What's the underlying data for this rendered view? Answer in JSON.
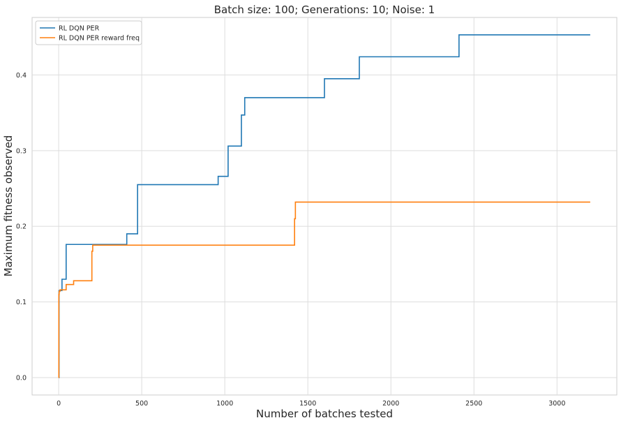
{
  "chart_data": {
    "type": "line",
    "title": "Batch size: 100; Generations: 10; Noise: 1",
    "xlabel": "Number of batches tested",
    "ylabel": "Maximum fitness observed",
    "xlim": [
      -160,
      3360
    ],
    "ylim": [
      -0.023,
      0.476
    ],
    "xticks": [
      0,
      500,
      1000,
      1500,
      2000,
      2500,
      3000
    ],
    "xtick_labels": [
      "0",
      "500",
      "1000",
      "1500",
      "2000",
      "2500",
      "3000"
    ],
    "yticks": [
      0.0,
      0.1,
      0.2,
      0.3,
      0.4
    ],
    "ytick_labels": [
      "0.0",
      "0.1",
      "0.2",
      "0.3",
      "0.4"
    ],
    "grid": true,
    "legend_position": "top-left",
    "step": true,
    "series": [
      {
        "name": "RL DQN PER",
        "color": "#1f77b4",
        "x": [
          0,
          2,
          20,
          45,
          410,
          475,
          960,
          1020,
          1100,
          1120,
          1600,
          1810,
          2410,
          3200
        ],
        "y": [
          0.0,
          0.115,
          0.13,
          0.176,
          0.19,
          0.255,
          0.266,
          0.306,
          0.347,
          0.37,
          0.395,
          0.424,
          0.453,
          0.453
        ]
      },
      {
        "name": "RL DQN PER reward freq",
        "color": "#ff7f0e",
        "x": [
          0,
          1,
          3,
          8,
          45,
          90,
          200,
          205,
          1420,
          1425,
          3200
        ],
        "y": [
          0.0,
          0.11,
          0.114,
          0.116,
          0.123,
          0.128,
          0.167,
          0.175,
          0.21,
          0.232,
          0.232
        ]
      }
    ]
  }
}
